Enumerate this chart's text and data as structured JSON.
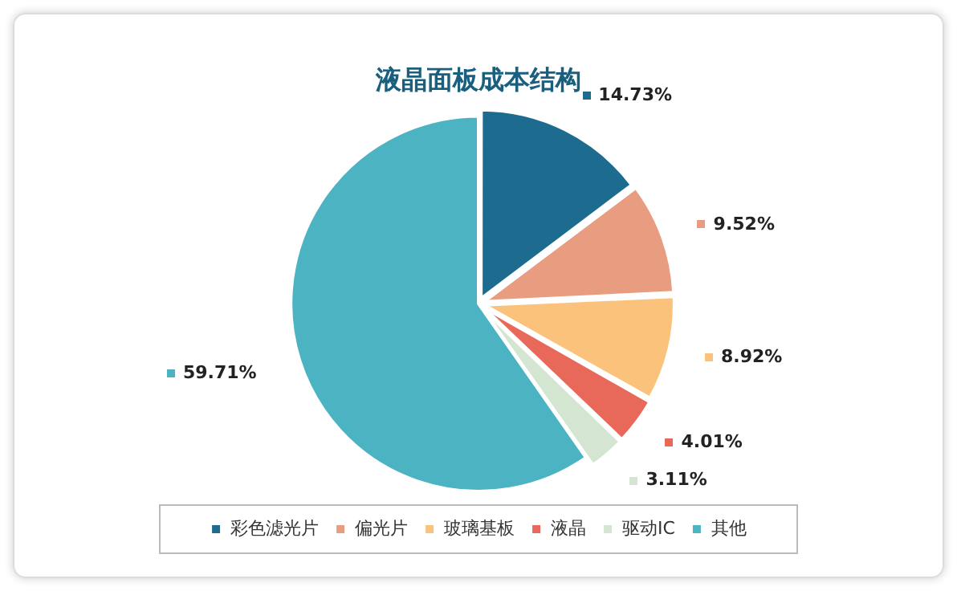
{
  "chart_data": {
    "type": "pie",
    "title": "液晶面板成本结构",
    "categories": [
      "彩色滤光片",
      "偏光片",
      "玻璃基板",
      "液晶",
      "驱动IC",
      "其他"
    ],
    "values": [
      14.73,
      9.52,
      8.92,
      4.01,
      3.11,
      59.71
    ],
    "value_labels": [
      "14.73%",
      "9.52%",
      "8.92%",
      "4.01%",
      "3.11%",
      "59.71%"
    ],
    "colors": [
      "#1d6b8e",
      "#e89c80",
      "#fbc27c",
      "#e8695a",
      "#d4e6d2",
      "#4bb3c2"
    ],
    "legend": "bottom"
  }
}
